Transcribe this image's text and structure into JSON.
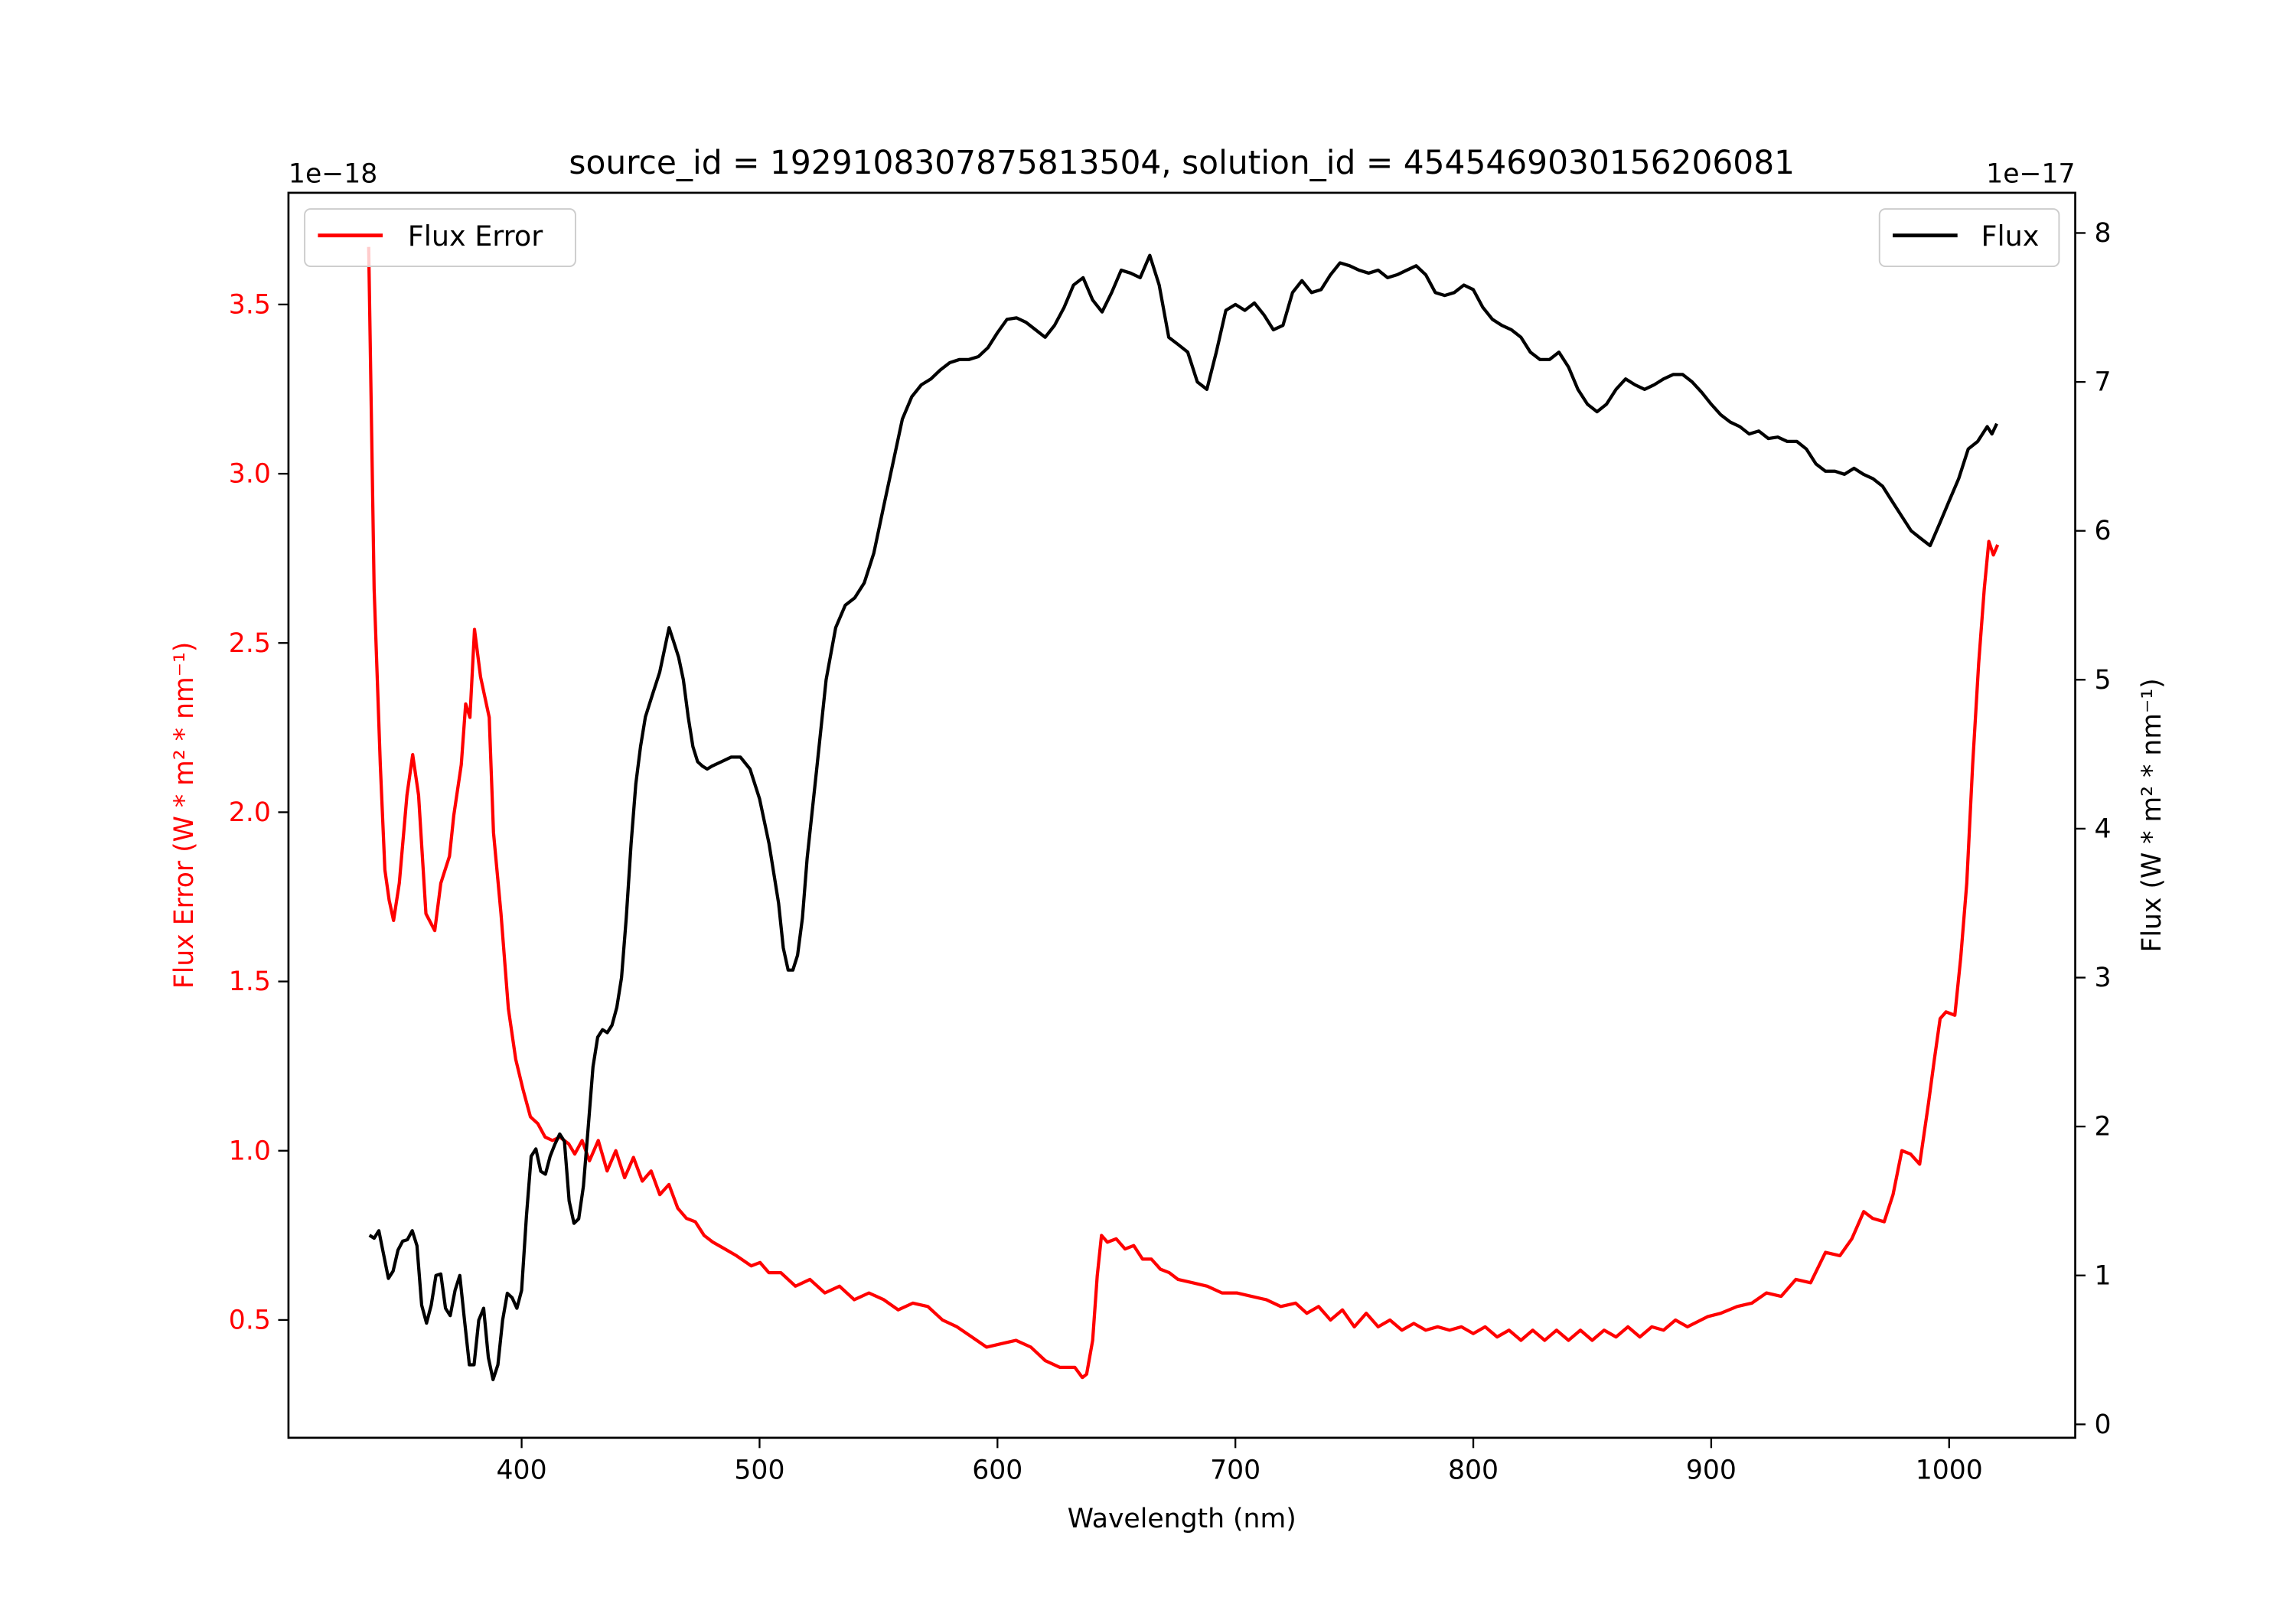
{
  "chart_data": {
    "type": "line",
    "title": "source_id = 1929108307875813504, solution_id = 4545469030156206081",
    "xlabel": "Wavelength (nm)",
    "xlim": [
      302,
      1053
    ],
    "xticks": [
      400,
      500,
      600,
      700,
      800,
      900,
      1000
    ],
    "grid": false,
    "left_axis": {
      "ylabel": "Flux Error (W * m² * nm⁻¹)",
      "offset_label": "1e−18",
      "ylim": [
        0.152,
        3.83
      ],
      "yticks": [
        0.5,
        1.0,
        1.5,
        2.0,
        2.5,
        3.0,
        3.5
      ],
      "ytick_labels": [
        "0.5",
        "1.0",
        "1.5",
        "2.0",
        "2.5",
        "3.0",
        "3.5"
      ],
      "color": "#ff0000"
    },
    "right_axis": {
      "ylabel": "Flux (W * m² * nm⁻¹)",
      "offset_label": "1e−17",
      "ylim": [
        -0.09,
        8.27
      ],
      "yticks": [
        0,
        1,
        2,
        3,
        4,
        5,
        6,
        7,
        8
      ],
      "ytick_labels": [
        "0",
        "1",
        "2",
        "3",
        "4",
        "5",
        "6",
        "7",
        "8"
      ],
      "color": "#000000"
    },
    "series": [
      {
        "name": "Flux Error",
        "axis": "left",
        "color": "#ff0000",
        "legend": "top-left",
        "x": [
          335.7,
          338,
          340.6,
          342.5,
          344.3,
          346.2,
          348.6,
          351.8,
          354.2,
          356.7,
          359.8,
          363.5,
          366,
          369.7,
          371.5,
          374.6,
          376.5,
          378.3,
          380.2,
          382.7,
          386.4,
          388.2,
          391.3,
          394.4,
          397.5,
          400.6,
          403.7,
          406.8,
          409.9,
          413,
          416.1,
          419.8,
          422.3,
          425.4,
          428.5,
          432.2,
          435.9,
          439.6,
          443.3,
          447,
          450.7,
          454.4,
          458.1,
          461.9,
          465.6,
          469.3,
          473,
          476.7,
          480.4,
          485.4,
          490.3,
          496.5,
          500.2,
          503.9,
          508.9,
          515.1,
          521.2,
          527.4,
          533.6,
          539.8,
          546,
          552.2,
          558.3,
          564.5,
          570.7,
          576.9,
          583,
          589.2,
          595.4,
          601.6,
          607.8,
          614,
          620.1,
          626.3,
          632.5,
          635.7,
          637.5,
          640,
          641.9,
          643.7,
          646.2,
          649.9,
          653.6,
          657.3,
          661,
          664.7,
          668.5,
          672.2,
          675.9,
          682.1,
          688.2,
          694.4,
          700.6,
          706.8,
          713,
          719.1,
          725.3,
          730,
          735,
          740,
          745,
          750,
          755,
          760,
          765,
          770,
          775,
          780,
          785,
          790,
          795,
          800,
          805,
          810,
          815,
          820,
          825,
          830,
          835,
          840,
          845,
          850,
          855,
          860,
          865,
          870,
          875,
          880,
          885,
          890,
          898.5,
          904,
          910.9,
          917.1,
          923.2,
          929.4,
          935.6,
          941.8,
          948,
          954.1,
          959.1,
          964.1,
          967.8,
          972.7,
          976.4,
          980.1,
          983.8,
          987.6,
          991.3,
          993.8,
          996.2,
          998.7,
          1002.4,
          1004.9,
          1007.4,
          1009.9,
          1012.4,
          1014.8,
          1016.7,
          1018.6,
          1020.4
        ],
        "y": [
          3.67,
          2.66,
          2.14,
          1.83,
          1.74,
          1.68,
          1.79,
          2.05,
          2.17,
          2.05,
          1.7,
          1.65,
          1.79,
          1.87,
          1.99,
          2.14,
          2.32,
          2.28,
          2.54,
          2.4,
          2.28,
          1.94,
          1.7,
          1.42,
          1.27,
          1.18,
          1.1,
          1.08,
          1.04,
          1.03,
          1.04,
          1.02,
          0.99,
          1.03,
          0.97,
          1.03,
          0.94,
          1.0,
          0.92,
          0.98,
          0.91,
          0.94,
          0.87,
          0.9,
          0.83,
          0.8,
          0.79,
          0.75,
          0.73,
          0.71,
          0.69,
          0.66,
          0.67,
          0.64,
          0.64,
          0.6,
          0.62,
          0.58,
          0.6,
          0.56,
          0.58,
          0.56,
          0.53,
          0.55,
          0.54,
          0.5,
          0.48,
          0.45,
          0.42,
          0.43,
          0.44,
          0.42,
          0.38,
          0.36,
          0.36,
          0.33,
          0.34,
          0.44,
          0.63,
          0.75,
          0.73,
          0.74,
          0.71,
          0.72,
          0.68,
          0.68,
          0.65,
          0.64,
          0.62,
          0.61,
          0.6,
          0.58,
          0.58,
          0.57,
          0.56,
          0.54,
          0.55,
          0.52,
          0.54,
          0.5,
          0.53,
          0.48,
          0.52,
          0.48,
          0.5,
          0.47,
          0.49,
          0.47,
          0.48,
          0.47,
          0.48,
          0.46,
          0.48,
          0.45,
          0.47,
          0.44,
          0.47,
          0.44,
          0.47,
          0.44,
          0.47,
          0.44,
          0.47,
          0.45,
          0.48,
          0.45,
          0.48,
          0.47,
          0.5,
          0.48,
          0.51,
          0.52,
          0.54,
          0.55,
          0.58,
          0.57,
          0.62,
          0.61,
          0.7,
          0.69,
          0.74,
          0.82,
          0.8,
          0.79,
          0.87,
          1.0,
          0.99,
          0.96,
          1.14,
          1.27,
          1.39,
          1.41,
          1.4,
          1.57,
          1.79,
          2.14,
          2.44,
          2.66,
          2.8,
          2.76,
          2.79
        ]
      },
      {
        "name": "Flux",
        "axis": "right",
        "color": "#000000",
        "legend": "top-right",
        "x": [
          336,
          338,
          340,
          344,
          346,
          348,
          350,
          352,
          354,
          356,
          358,
          360,
          362,
          364,
          366,
          368,
          370,
          372,
          374,
          376,
          378,
          380,
          382,
          384,
          386,
          388,
          390,
          392,
          394,
          396,
          398,
          400,
          402,
          404,
          406,
          408,
          410,
          412,
          414,
          416,
          418,
          420,
          422,
          424,
          426,
          428,
          430,
          432,
          434,
          436,
          438,
          440,
          442,
          444,
          446,
          448,
          450,
          452,
          455,
          458,
          460,
          462,
          464,
          466,
          468,
          470,
          472,
          474,
          476,
          478,
          480,
          484,
          488,
          492,
          496,
          500,
          504,
          508,
          510,
          512,
          514,
          516,
          518,
          520,
          524,
          528,
          532,
          536,
          540,
          544,
          548,
          552,
          556,
          560,
          564,
          568,
          572,
          576,
          580,
          584,
          588,
          592,
          596,
          600,
          604,
          608,
          612,
          616,
          620,
          624,
          628,
          632,
          636,
          640,
          644,
          648,
          652,
          656,
          660,
          664,
          668,
          672,
          676,
          680,
          684,
          688,
          692,
          696,
          700,
          704,
          708,
          712,
          716,
          720,
          724,
          728,
          732,
          736,
          740,
          744,
          748,
          752,
          756,
          760,
          764,
          768,
          772,
          776,
          780,
          784,
          788,
          792,
          796,
          800,
          804,
          808,
          812,
          816,
          820,
          824,
          828,
          832,
          836,
          840,
          844,
          848,
          852,
          856,
          860,
          864,
          868,
          872,
          876,
          880,
          884,
          888,
          892,
          896,
          900,
          904,
          908,
          912,
          916,
          920,
          924,
          928,
          932,
          936,
          940,
          944,
          948,
          952,
          956,
          960,
          964,
          968,
          972,
          976,
          980,
          984,
          988,
          992,
          996,
          1000,
          1004,
          1008,
          1012,
          1016,
          1018,
          1020
        ],
        "y": [
          1.27,
          1.25,
          1.3,
          0.98,
          1.03,
          1.17,
          1.23,
          1.24,
          1.3,
          1.2,
          0.8,
          0.68,
          0.8,
          1.0,
          1.01,
          0.78,
          0.73,
          0.9,
          1.0,
          0.7,
          0.4,
          0.4,
          0.7,
          0.78,
          0.45,
          0.3,
          0.4,
          0.7,
          0.88,
          0.85,
          0.78,
          0.9,
          1.4,
          1.8,
          1.85,
          1.7,
          1.68,
          1.8,
          1.88,
          1.95,
          1.9,
          1.5,
          1.35,
          1.38,
          1.6,
          2.0,
          2.4,
          2.6,
          2.65,
          2.63,
          2.68,
          2.8,
          3.0,
          3.4,
          3.9,
          4.3,
          4.55,
          4.75,
          4.9,
          5.05,
          5.2,
          5.35,
          5.25,
          5.15,
          5.0,
          4.75,
          4.55,
          4.45,
          4.42,
          4.4,
          4.42,
          4.45,
          4.48,
          4.48,
          4.4,
          4.2,
          3.9,
          3.5,
          3.2,
          3.05,
          3.05,
          3.15,
          3.4,
          3.8,
          4.4,
          5.0,
          5.35,
          5.5,
          5.55,
          5.65,
          5.85,
          6.15,
          6.45,
          6.75,
          6.9,
          6.98,
          7.02,
          7.08,
          7.13,
          7.15,
          7.15,
          7.17,
          7.23,
          7.33,
          7.42,
          7.43,
          7.4,
          7.35,
          7.3,
          7.38,
          7.5,
          7.65,
          7.7,
          7.55,
          7.47,
          7.6,
          7.75,
          7.73,
          7.7,
          7.85,
          7.65,
          7.3,
          7.25,
          7.2,
          7.0,
          6.95,
          7.2,
          7.48,
          7.52,
          7.48,
          7.53,
          7.45,
          7.35,
          7.38,
          7.6,
          7.68,
          7.6,
          7.62,
          7.72,
          7.8,
          7.78,
          7.75,
          7.73,
          7.75,
          7.7,
          7.72,
          7.75,
          7.78,
          7.72,
          7.6,
          7.58,
          7.6,
          7.65,
          7.62,
          7.5,
          7.42,
          7.38,
          7.35,
          7.3,
          7.2,
          7.15,
          7.15,
          7.2,
          7.1,
          6.95,
          6.85,
          6.8,
          6.85,
          6.95,
          7.02,
          6.98,
          6.95,
          6.98,
          7.02,
          7.05,
          7.05,
          7.0,
          6.93,
          6.85,
          6.78,
          6.73,
          6.7,
          6.65,
          6.67,
          6.62,
          6.63,
          6.6,
          6.6,
          6.55,
          6.45,
          6.4,
          6.4,
          6.38,
          6.42,
          6.38,
          6.35,
          6.3,
          6.2,
          6.1,
          6.0,
          5.95,
          5.9,
          6.05,
          6.2,
          6.35,
          6.55,
          6.6,
          6.7,
          6.65,
          6.72
        ]
      }
    ]
  }
}
